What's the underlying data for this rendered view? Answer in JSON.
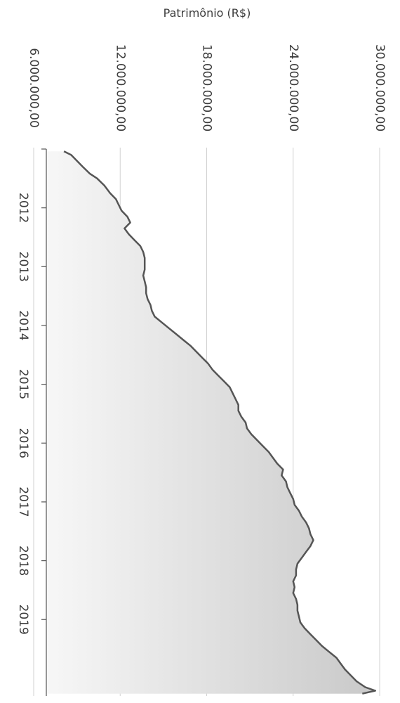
{
  "chart_data": {
    "type": "area",
    "title": "",
    "xlabel": "",
    "ylabel": "Patrimônio (R$)",
    "ylim": [
      6000000,
      30000000
    ],
    "yticks": [
      {
        "value": 6000000,
        "label": "6.000.000,00"
      },
      {
        "value": 12000000,
        "label": "12.000.000,00"
      },
      {
        "value": 18000000,
        "label": "18.000.000,00"
      },
      {
        "value": 24000000,
        "label": "24.000.000,00"
      },
      {
        "value": 30000000,
        "label": "30.000.000,00"
      }
    ],
    "xlim": [
      2011.0,
      2020.3
    ],
    "xticks": [
      2012,
      2013,
      2014,
      2015,
      2016,
      2017,
      2018,
      2019
    ],
    "grid": true,
    "legend": "none",
    "colors": {
      "line": "#555555",
      "fill_light": "#f7f7f7",
      "fill_dark": "#c9c9c9",
      "grid": "#d2d2d2",
      "text": "#3b3b3b"
    },
    "series": [
      {
        "x": [
          2011.04,
          2011.1,
          2011.2,
          2011.3,
          2011.42,
          2011.5,
          2011.62,
          2011.75,
          2011.85,
          2011.95,
          2012.05,
          2012.15,
          2012.25,
          2012.35,
          2012.45,
          2012.55,
          2012.65,
          2012.75,
          2012.85,
          2012.95,
          2013.05,
          2013.15,
          2013.25,
          2013.35,
          2013.45,
          2013.55,
          2013.65,
          2013.75,
          2013.85,
          2013.95,
          2014.05,
          2014.15,
          2014.25,
          2014.35,
          2014.45,
          2014.55,
          2014.65,
          2014.75,
          2014.85,
          2014.95,
          2015.05,
          2015.15,
          2015.25,
          2015.35,
          2015.45,
          2015.55,
          2015.65,
          2015.75,
          2015.85,
          2015.95,
          2016.05,
          2016.15,
          2016.25,
          2016.35,
          2016.45,
          2016.55,
          2016.65,
          2016.75,
          2016.85,
          2016.95,
          2017.05,
          2017.15,
          2017.25,
          2017.35,
          2017.45,
          2017.55,
          2017.65,
          2017.75,
          2017.85,
          2017.95,
          2018.05,
          2018.15,
          2018.25,
          2018.35,
          2018.45,
          2018.55,
          2018.65,
          2018.75,
          2018.85,
          2018.95,
          2019.05,
          2019.15,
          2019.25,
          2019.35,
          2019.45,
          2019.55,
          2019.65,
          2019.75,
          2019.85,
          2019.95,
          2020.05,
          2020.15,
          2020.21,
          2020.26
        ],
        "y": [
          8100000,
          8600000,
          9000000,
          9400000,
          9900000,
          10400000,
          10900000,
          11300000,
          11700000,
          11900000,
          12100000,
          12500000,
          12700000,
          12300000,
          12600000,
          13000000,
          13400000,
          13600000,
          13700000,
          13700000,
          13700000,
          13600000,
          13700000,
          13800000,
          13800000,
          13900000,
          14100000,
          14200000,
          14400000,
          14900000,
          15400000,
          15900000,
          16400000,
          16900000,
          17300000,
          17700000,
          18100000,
          18400000,
          18800000,
          19200000,
          19600000,
          19800000,
          20000000,
          20200000,
          20200000,
          20400000,
          20700000,
          20800000,
          21100000,
          21500000,
          21900000,
          22300000,
          22600000,
          22900000,
          23300000,
          23200000,
          23500000,
          23600000,
          23800000,
          24000000,
          24100000,
          24400000,
          24600000,
          24900000,
          25100000,
          25200000,
          25400000,
          25200000,
          24900000,
          24600000,
          24300000,
          24200000,
          24200000,
          24000000,
          24100000,
          24000000,
          24200000,
          24300000,
          24300000,
          24400000,
          24500000,
          24800000,
          25200000,
          25600000,
          26000000,
          26500000,
          27000000,
          27300000,
          27600000,
          28000000,
          28400000,
          29000000,
          29700000,
          28800000
        ]
      }
    ]
  }
}
